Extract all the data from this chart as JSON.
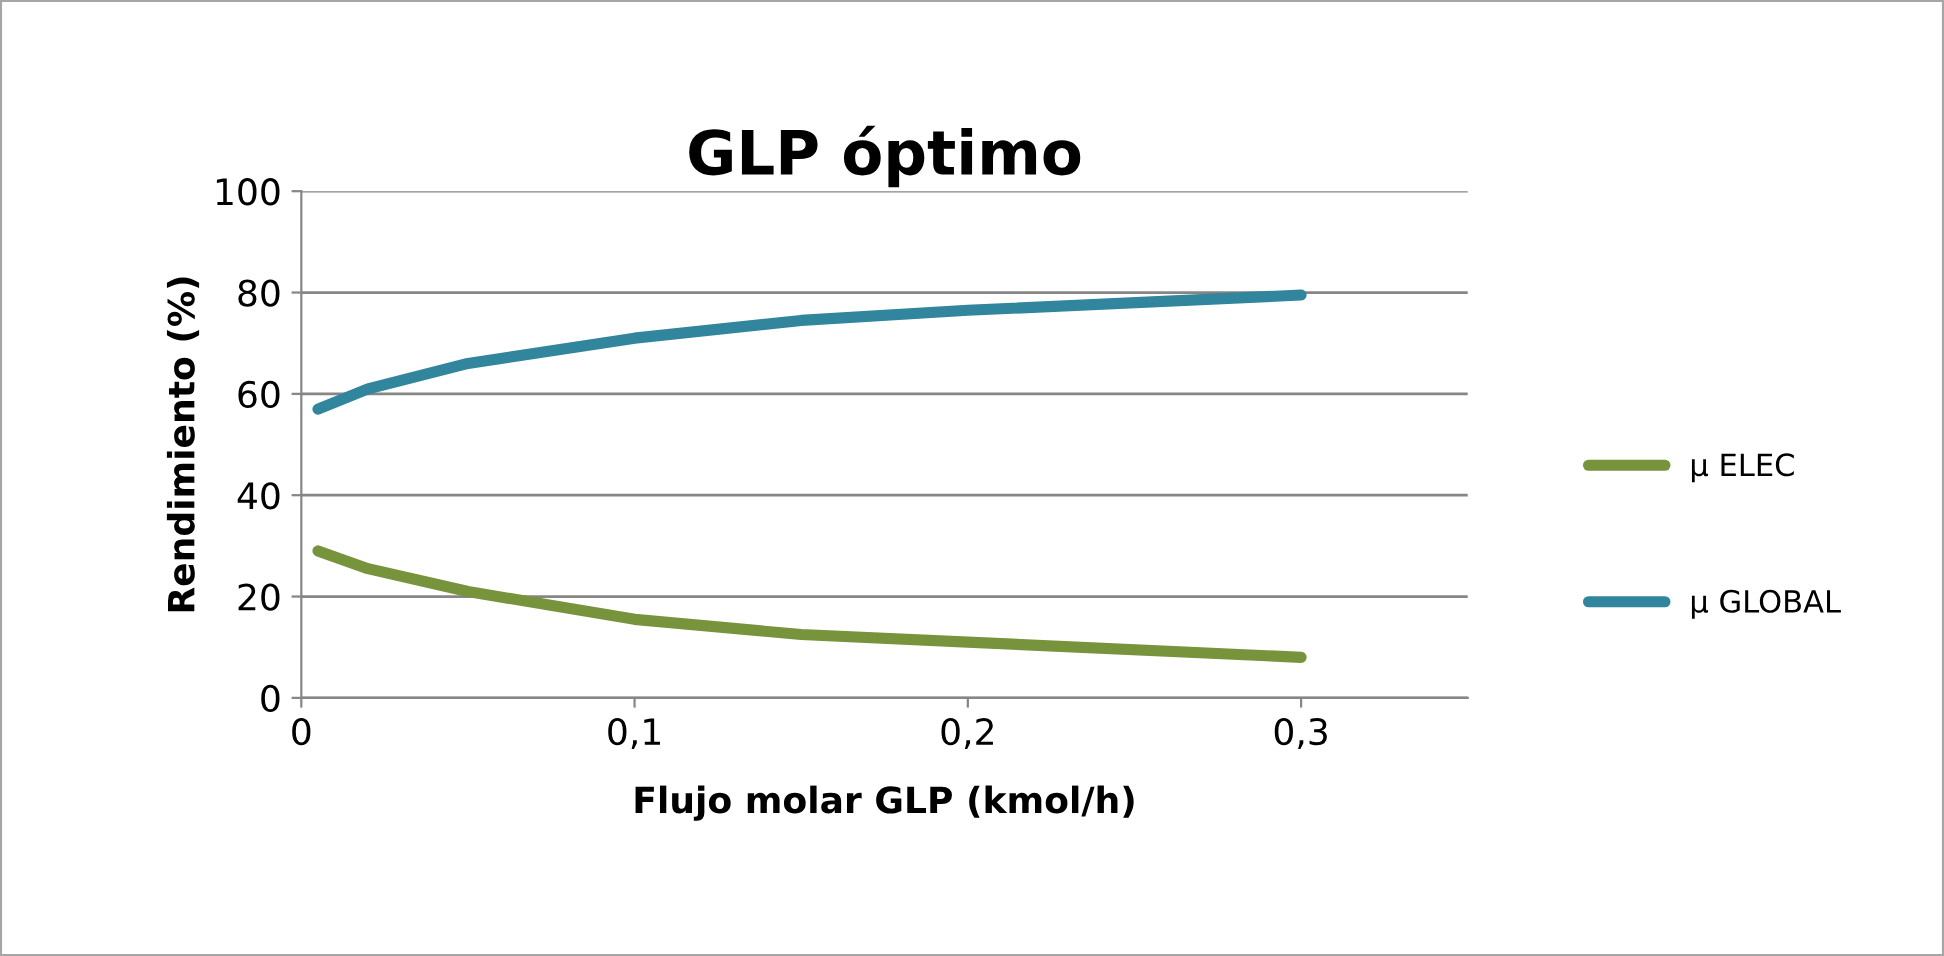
{
  "chart_data": {
    "type": "line",
    "title": "GLP óptimo",
    "xlabel": "Flujo molar GLP (kmol/h)",
    "ylabel": "Rendimiento (%)",
    "x": [
      0.005,
      0.02,
      0.05,
      0.1,
      0.15,
      0.2,
      0.3
    ],
    "series": [
      {
        "name": "µ ELEC",
        "color": "#77933c",
        "values": [
          29,
          25.5,
          21,
          15.5,
          12.5,
          11,
          8
        ]
      },
      {
        "name": "µ GLOBAL",
        "color": "#31859c",
        "values": [
          57,
          61,
          66,
          71,
          74.5,
          76.5,
          79.5
        ]
      }
    ],
    "xlim": [
      0,
      0.35
    ],
    "xticks": [
      {
        "value": 0,
        "label": "0"
      },
      {
        "value": 0.1,
        "label": "0,1"
      },
      {
        "value": 0.2,
        "label": "0,2"
      },
      {
        "value": 0.3,
        "label": "0,3"
      }
    ],
    "ylim": [
      0,
      100
    ],
    "yticks": [
      0,
      20,
      40,
      60,
      80,
      100
    ],
    "grid": "y",
    "legend": "right",
    "marker": "none",
    "line_style": "solid"
  }
}
